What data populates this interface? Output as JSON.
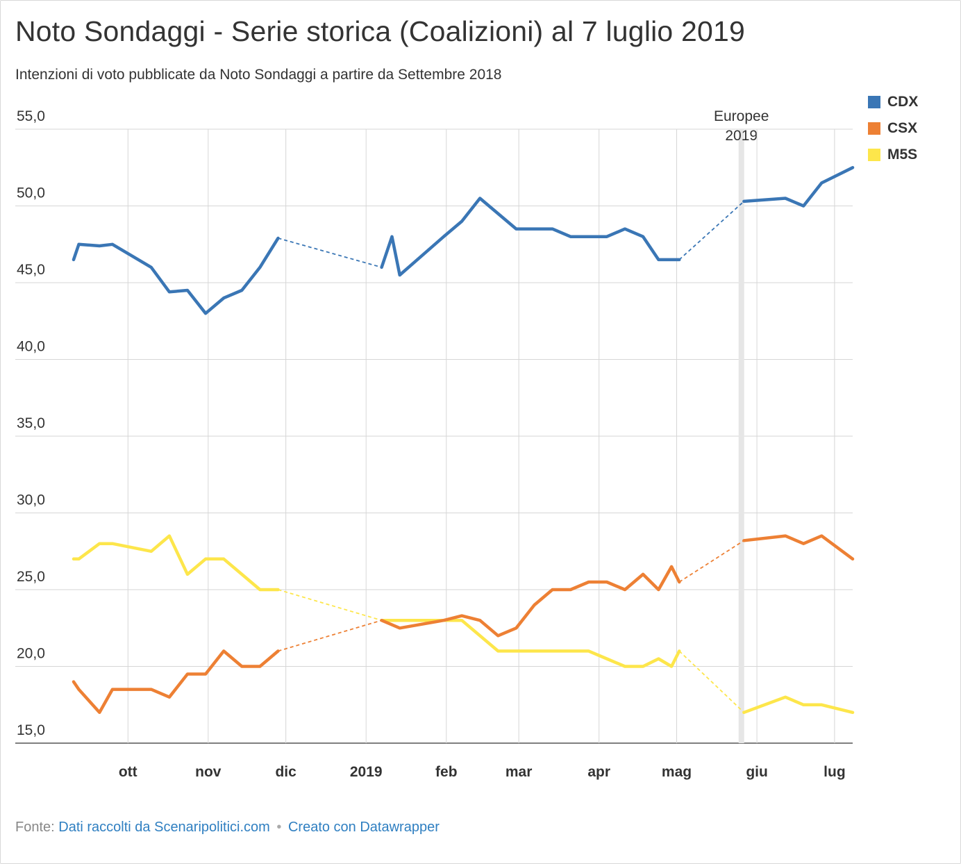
{
  "header": {
    "title": "Noto Sondaggi - Serie storica (Coalizioni) al 7 luglio 2019",
    "subtitle": "Intenzioni di voto pubblicate da Noto Sondaggi a partire da Settembre 2018"
  },
  "footer": {
    "source_label": "Fonte:",
    "source_link": "Dati raccolti da Scenaripolitici.com",
    "separator": "•",
    "made_with": "Creato con Datawrapper"
  },
  "chart_data": {
    "type": "line",
    "title": "Noto Sondaggi - Serie storica (Coalizioni) al 7 luglio 2019",
    "subtitle": "Intenzioni di voto pubblicate da Noto Sondaggi a partire da Settembre 2018",
    "xlabel": "",
    "ylabel": "",
    "x_range": [
      "2018-09-10",
      "2019-07-08"
    ],
    "ylim": [
      15,
      55
    ],
    "yticks": [
      15,
      20,
      25,
      30,
      35,
      40,
      45,
      50,
      55
    ],
    "ytick_labels": [
      "15,0",
      "20,0",
      "25,0",
      "30,0",
      "35,0",
      "40,0",
      "45,0",
      "50,0",
      "55,0"
    ],
    "xticks": [
      {
        "date": "2018-10-01",
        "label": "ott"
      },
      {
        "date": "2018-11-01",
        "label": "nov"
      },
      {
        "date": "2018-12-01",
        "label": "dic"
      },
      {
        "date": "2019-01-01",
        "label": "2019"
      },
      {
        "date": "2019-02-01",
        "label": "feb"
      },
      {
        "date": "2019-03-01",
        "label": "mar"
      },
      {
        "date": "2019-04-01",
        "label": "apr"
      },
      {
        "date": "2019-05-01",
        "label": "mag"
      },
      {
        "date": "2019-06-01",
        "label": "giu"
      },
      {
        "date": "2019-07-01",
        "label": "lug"
      }
    ],
    "grid": true,
    "legend_position": "top-right",
    "annotations": [
      {
        "type": "vline",
        "date": "2019-05-26",
        "label_lines": [
          "Europee",
          "2019"
        ],
        "color": "#e6e6e6"
      }
    ],
    "series": [
      {
        "name": "CDX",
        "color": "#3a76b5",
        "segments": [
          [
            [
              "2018-09-10",
              46.5
            ],
            [
              "2018-09-12",
              47.5
            ],
            [
              "2018-09-20",
              47.4
            ],
            [
              "2018-09-25",
              47.5
            ],
            [
              "2018-10-10",
              46.0
            ],
            [
              "2018-10-17",
              44.4
            ],
            [
              "2018-10-24",
              44.5
            ],
            [
              "2018-10-31",
              43.0
            ],
            [
              "2018-11-07",
              44.0
            ],
            [
              "2018-11-14",
              44.5
            ],
            [
              "2018-11-21",
              46.0
            ],
            [
              "2018-11-28",
              47.9
            ]
          ],
          [
            [
              "2019-01-07",
              46.0
            ],
            [
              "2019-01-11",
              48.0
            ],
            [
              "2019-01-14",
              45.5
            ],
            [
              "2019-01-31",
              48.0
            ],
            [
              "2019-02-07",
              49.0
            ],
            [
              "2019-02-14",
              50.5
            ],
            [
              "2019-02-28",
              48.5
            ],
            [
              "2019-03-14",
              48.5
            ],
            [
              "2019-03-21",
              48.0
            ],
            [
              "2019-04-04",
              48.0
            ],
            [
              "2019-04-11",
              48.5
            ],
            [
              "2019-04-18",
              48.0
            ],
            [
              "2019-04-24",
              46.5
            ],
            [
              "2019-05-02",
              46.5
            ]
          ],
          [
            [
              "2019-05-27",
              50.3
            ],
            [
              "2019-06-12",
              50.5
            ],
            [
              "2019-06-19",
              50.0
            ],
            [
              "2019-06-26",
              51.5
            ],
            [
              "2019-07-08",
              52.5
            ]
          ]
        ]
      },
      {
        "name": "CSX",
        "color": "#ed8034",
        "segments": [
          [
            [
              "2018-09-10",
              19.0
            ],
            [
              "2018-09-12",
              18.5
            ],
            [
              "2018-09-20",
              17.0
            ],
            [
              "2018-09-25",
              18.5
            ],
            [
              "2018-10-10",
              18.5
            ],
            [
              "2018-10-17",
              18.0
            ],
            [
              "2018-10-24",
              19.5
            ],
            [
              "2018-10-31",
              19.5
            ],
            [
              "2018-11-07",
              21.0
            ],
            [
              "2018-11-14",
              20.0
            ],
            [
              "2018-11-21",
              20.0
            ],
            [
              "2018-11-28",
              21.0
            ]
          ],
          [
            [
              "2019-01-07",
              23.0
            ],
            [
              "2019-01-14",
              22.5
            ],
            [
              "2019-01-31",
              23.0
            ],
            [
              "2019-02-07",
              23.3
            ],
            [
              "2019-02-14",
              23.0
            ],
            [
              "2019-02-21",
              22.0
            ],
            [
              "2019-02-28",
              22.5
            ],
            [
              "2019-03-07",
              24.0
            ],
            [
              "2019-03-14",
              25.0
            ],
            [
              "2019-03-21",
              25.0
            ],
            [
              "2019-03-28",
              25.5
            ],
            [
              "2019-04-04",
              25.5
            ],
            [
              "2019-04-11",
              25.0
            ],
            [
              "2019-04-18",
              26.0
            ],
            [
              "2019-04-24",
              25.0
            ],
            [
              "2019-04-29",
              26.5
            ],
            [
              "2019-05-02",
              25.5
            ]
          ],
          [
            [
              "2019-05-27",
              28.2
            ],
            [
              "2019-06-12",
              28.5
            ],
            [
              "2019-06-19",
              28.0
            ],
            [
              "2019-06-26",
              28.5
            ],
            [
              "2019-07-08",
              27.0
            ]
          ]
        ]
      },
      {
        "name": "M5S",
        "color": "#fde64b",
        "segments": [
          [
            [
              "2018-09-10",
              27.0
            ],
            [
              "2018-09-12",
              27.0
            ],
            [
              "2018-09-20",
              28.0
            ],
            [
              "2018-09-25",
              28.0
            ],
            [
              "2018-10-10",
              27.5
            ],
            [
              "2018-10-17",
              28.5
            ],
            [
              "2018-10-24",
              26.0
            ],
            [
              "2018-10-31",
              27.0
            ],
            [
              "2018-11-07",
              27.0
            ],
            [
              "2018-11-14",
              26.0
            ],
            [
              "2018-11-21",
              25.0
            ],
            [
              "2018-11-28",
              25.0
            ]
          ],
          [
            [
              "2019-01-07",
              23.0
            ],
            [
              "2019-01-14",
              23.0
            ],
            [
              "2019-01-31",
              23.0
            ],
            [
              "2019-02-07",
              23.0
            ],
            [
              "2019-02-21",
              21.0
            ],
            [
              "2019-02-28",
              21.0
            ],
            [
              "2019-03-14",
              21.0
            ],
            [
              "2019-03-21",
              21.0
            ],
            [
              "2019-03-28",
              21.0
            ],
            [
              "2019-04-04",
              20.5
            ],
            [
              "2019-04-11",
              20.0
            ],
            [
              "2019-04-18",
              20.0
            ],
            [
              "2019-04-24",
              20.5
            ],
            [
              "2019-04-29",
              20.0
            ],
            [
              "2019-05-02",
              21.0
            ]
          ],
          [
            [
              "2019-05-27",
              17.0
            ],
            [
              "2019-06-12",
              18.0
            ],
            [
              "2019-06-19",
              17.5
            ],
            [
              "2019-06-26",
              17.5
            ],
            [
              "2019-07-08",
              17.0
            ]
          ]
        ]
      }
    ]
  }
}
